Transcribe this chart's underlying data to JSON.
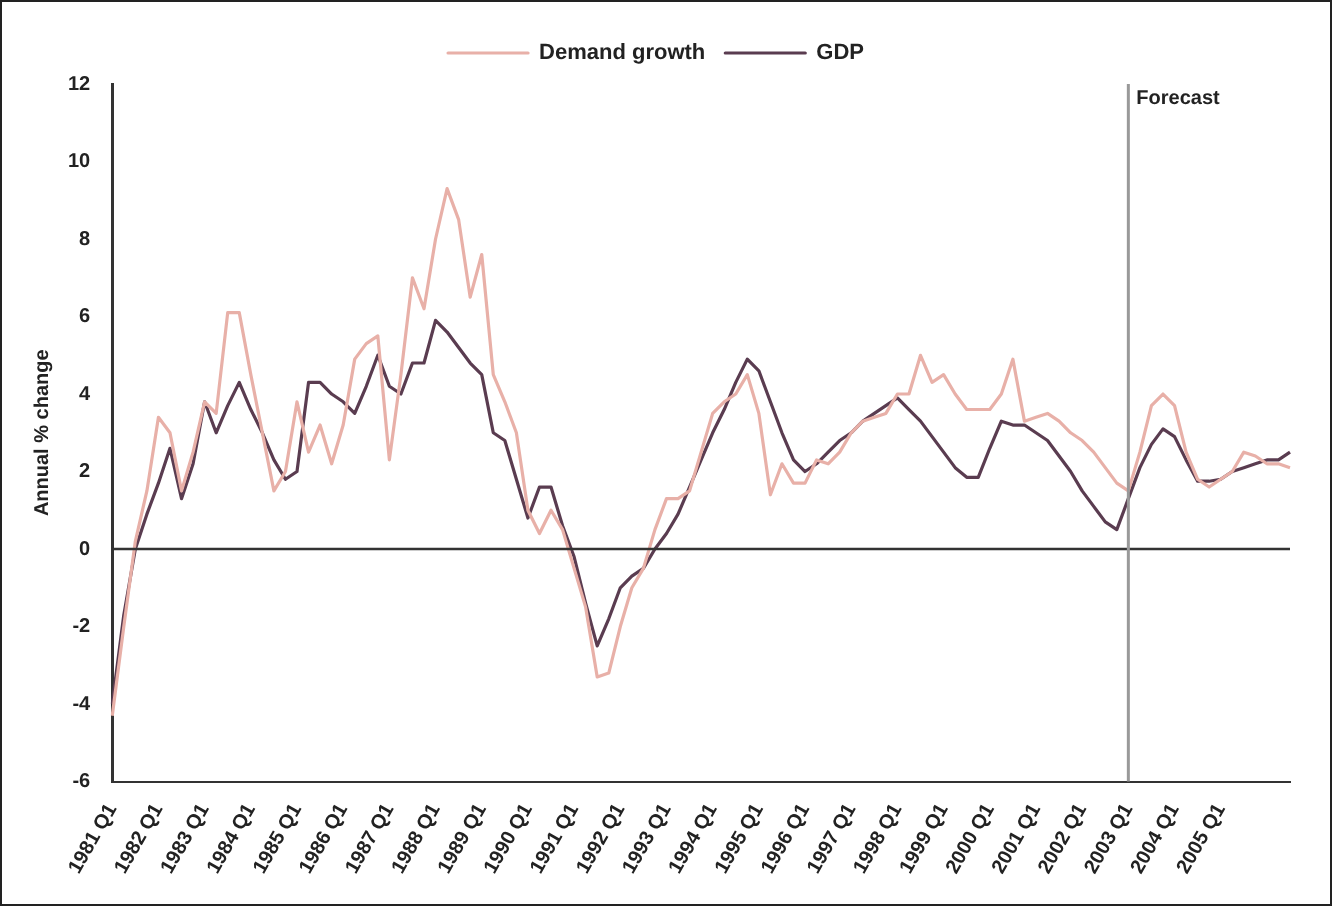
{
  "chart_data": {
    "type": "line",
    "ylabel": "Annual % change",
    "categories": [
      "1981 Q1",
      null,
      null,
      null,
      "1982 Q1",
      null,
      null,
      null,
      "1983 Q1",
      null,
      null,
      null,
      "1984 Q1",
      null,
      null,
      null,
      "1985 Q1",
      null,
      null,
      null,
      "1986 Q1",
      null,
      null,
      null,
      "1987 Q1",
      null,
      null,
      null,
      "1988 Q1",
      null,
      null,
      null,
      "1989 Q1",
      null,
      null,
      null,
      "1990 Q1",
      null,
      null,
      null,
      "1991 Q1",
      null,
      null,
      null,
      "1992 Q1",
      null,
      null,
      null,
      "1993 Q1",
      null,
      null,
      null,
      "1994 Q1",
      null,
      null,
      null,
      "1995 Q1",
      null,
      null,
      null,
      "1996 Q1",
      null,
      null,
      null,
      "1997 Q1",
      null,
      null,
      null,
      "1998 Q1",
      null,
      null,
      null,
      "1999 Q1",
      null,
      null,
      null,
      "2000 Q1",
      null,
      null,
      null,
      "2001 Q1",
      null,
      null,
      null,
      "2002 Q1",
      null,
      null,
      null,
      "2003 Q1",
      null,
      null,
      null,
      "2004 Q1",
      null,
      null,
      null,
      "2005 Q1",
      null,
      null,
      null,
      null,
      null,
      null
    ],
    "series": [
      {
        "name": "Demand growth",
        "color": "#e8b0a8",
        "values": [
          -4.3,
          -2.0,
          0.2,
          1.5,
          3.4,
          3.0,
          1.5,
          2.5,
          3.8,
          3.5,
          6.1,
          6.1,
          4.5,
          3.0,
          1.5,
          2.0,
          3.8,
          2.5,
          3.2,
          2.2,
          3.2,
          4.9,
          5.3,
          5.5,
          2.3,
          4.5,
          7.0,
          6.2,
          8.0,
          9.3,
          8.5,
          6.5,
          7.6,
          4.5,
          3.8,
          3.0,
          1.0,
          0.4,
          1.0,
          0.5,
          -0.5,
          -1.5,
          -3.3,
          -3.2,
          -2.0,
          -1.0,
          -0.5,
          0.5,
          1.3,
          1.3,
          1.5,
          2.5,
          3.5,
          3.8,
          4.0,
          4.5,
          3.5,
          1.4,
          2.2,
          1.7,
          1.7,
          2.3,
          2.2,
          2.5,
          3.0,
          3.3,
          3.4,
          3.5,
          4.0,
          4.0,
          5.0,
          4.3,
          4.5,
          4.0,
          3.6,
          3.6,
          3.6,
          4.0,
          4.9,
          3.3,
          3.4,
          3.5,
          3.3,
          3.0,
          2.8,
          2.5,
          2.1,
          1.7,
          1.5,
          2.5,
          3.7,
          4.0,
          3.7,
          2.5,
          1.8,
          1.6,
          1.8,
          2.0,
          2.5,
          2.4,
          2.2,
          2.2,
          2.1
        ]
      },
      {
        "name": "GDP",
        "color": "#5a3c50",
        "values": [
          -4.0,
          -1.7,
          0.0,
          0.9,
          1.7,
          2.6,
          1.3,
          2.2,
          3.8,
          3.0,
          3.7,
          4.3,
          3.6,
          3.0,
          2.3,
          1.8,
          2.0,
          4.3,
          4.3,
          4.0,
          3.8,
          3.5,
          4.2,
          5.0,
          4.2,
          4.0,
          4.8,
          4.8,
          5.9,
          5.6,
          5.2,
          4.8,
          4.5,
          3.0,
          2.8,
          1.8,
          0.8,
          1.6,
          1.6,
          0.6,
          -0.2,
          -1.4,
          -2.5,
          -1.8,
          -1.0,
          -0.7,
          -0.5,
          0.0,
          0.4,
          0.9,
          1.6,
          2.3,
          3.0,
          3.6,
          4.3,
          4.9,
          4.6,
          3.8,
          3.0,
          2.3,
          2.0,
          2.2,
          2.5,
          2.8,
          3.0,
          3.3,
          3.5,
          3.7,
          3.9,
          3.6,
          3.3,
          2.9,
          2.5,
          2.1,
          1.85,
          1.85,
          2.6,
          3.3,
          3.2,
          3.2,
          3.0,
          2.8,
          2.4,
          2.0,
          1.5,
          1.1,
          0.7,
          0.5,
          1.3,
          2.1,
          2.7,
          3.1,
          2.9,
          2.3,
          1.75,
          1.75,
          1.8,
          2.0,
          2.1,
          2.2,
          2.3,
          2.3,
          2.5
        ]
      }
    ],
    "ylim": [
      -6,
      12
    ],
    "yticks": [
      -6,
      -4,
      -2,
      0,
      2,
      4,
      6,
      8,
      10,
      12
    ],
    "ref_lines": [
      {
        "axis": "x",
        "value": "2003 Q1",
        "label": "Forecast",
        "color": "#999999"
      }
    ],
    "grid": false,
    "legend": "top",
    "marker": "none",
    "line_style": "solid"
  }
}
